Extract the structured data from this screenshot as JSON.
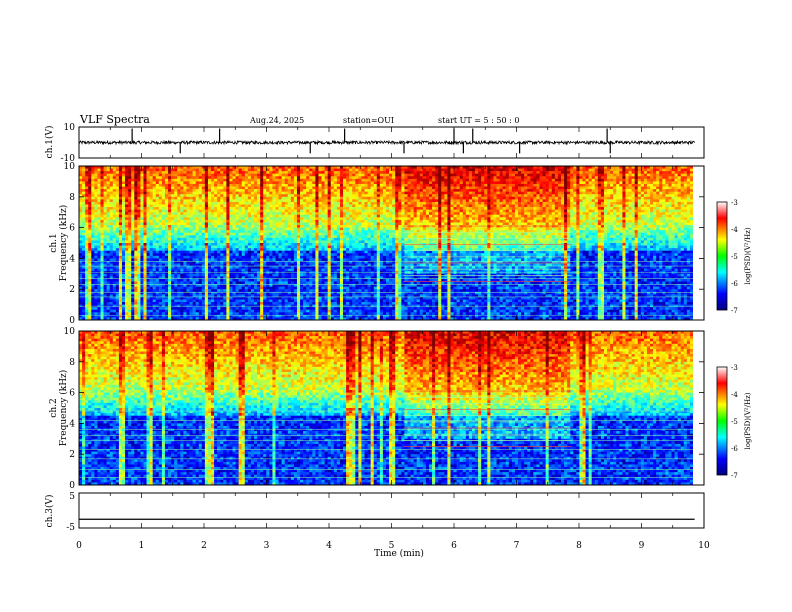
{
  "header": {
    "title": "VLF Spectra",
    "date": "Aug.24, 2025",
    "station": "station=OUI",
    "start_ut": "start  UT =   5 : 50 : 0"
  },
  "chart_data": [
    {
      "type": "line",
      "name": "ch1-waveform",
      "ylabel": "ch.1(V)",
      "ylim": [
        -10,
        10
      ],
      "y_ticks": [
        "10",
        "-10"
      ],
      "baseline": 0,
      "noise_amplitude": 1.0,
      "spikes_min": [
        0.85,
        1.62,
        2.25,
        3.7,
        4.25,
        5.2,
        6.0,
        6.15,
        6.3,
        7.05,
        8.45,
        8.5
      ],
      "x_range_min": [
        0,
        9.85
      ]
    },
    {
      "type": "heatmap",
      "name": "ch1-spectrogram",
      "ylabel": "Frequency  (kHz)",
      "panel_label": "ch.1",
      "ylim": [
        0,
        10
      ],
      "y_ticks": [
        "0",
        "2",
        "4",
        "6",
        "8",
        "10"
      ],
      "x_range_min": [
        0,
        9.85
      ],
      "harmonic_lines_khz": [
        0.3,
        0.9,
        1.5,
        1.8,
        2.3,
        2.7,
        3.1,
        3.5,
        3.8
      ],
      "event_window_min": [
        5.2,
        7.9
      ],
      "colorbar": {
        "label": "log(PSD)(V²/Hz)",
        "ticks": [
          "-3",
          "-4",
          "-5",
          "-6",
          "-7"
        ],
        "range": [
          -7,
          -3
        ]
      }
    },
    {
      "type": "heatmap",
      "name": "ch2-spectrogram",
      "ylabel": "Frequency  (kHz)",
      "panel_label": "ch.2",
      "ylim": [
        0,
        10
      ],
      "y_ticks": [
        "0",
        "2",
        "4",
        "6",
        "8",
        "10"
      ],
      "x_range_min": [
        0,
        9.85
      ],
      "harmonic_lines_khz": [
        0.5,
        1.0,
        1.7,
        2.3,
        2.9,
        3.2,
        3.6,
        4.2,
        4.8
      ],
      "event_window_min": [
        5.2,
        7.9
      ],
      "colorbar": {
        "label": "log(PSD)(V²/Hz)",
        "ticks": [
          "-3",
          "-4",
          "-5",
          "-6",
          "-7"
        ],
        "range": [
          -7,
          -3
        ]
      }
    },
    {
      "type": "line",
      "name": "ch3-waveform",
      "ylabel": "ch.3(V)",
      "ylim": [
        -5,
        5
      ],
      "y_ticks": [
        "5",
        "-5"
      ],
      "baseline": -2.5,
      "x_range_min": [
        0,
        9.85
      ]
    }
  ],
  "x_axis": {
    "xlabel": "Time  (min)",
    "xlim": [
      0,
      10
    ],
    "ticks": [
      "0",
      "1",
      "2",
      "3",
      "4",
      "5",
      "6",
      "7",
      "8",
      "9",
      "10"
    ]
  }
}
